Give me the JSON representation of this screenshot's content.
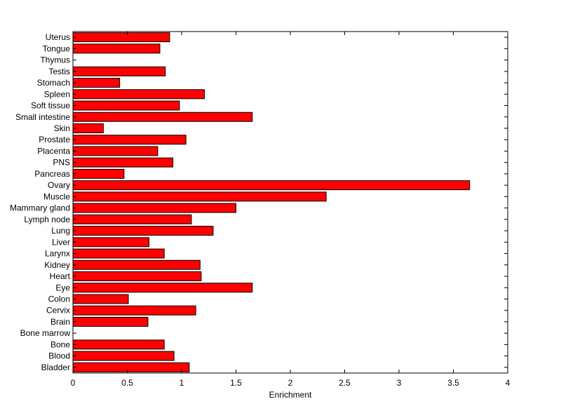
{
  "chart_data": {
    "type": "bar",
    "orientation": "horizontal",
    "categories": [
      "Bladder",
      "Blood",
      "Bone",
      "Bone marrow",
      "Brain",
      "Cervix",
      "Colon",
      "Eye",
      "Heart",
      "Kidney",
      "Larynx",
      "Liver",
      "Lung",
      "Lymph node",
      "Mammary gland",
      "Muscle",
      "Ovary",
      "Pancreas",
      "PNS",
      "Placenta",
      "Prostate",
      "Skin",
      "Small intestine",
      "Soft tissue",
      "Spleen",
      "Stomach",
      "Testis",
      "Thymus",
      "Tongue",
      "Uterus"
    ],
    "values": [
      1.07,
      0.93,
      0.84,
      0,
      0.69,
      1.13,
      0.51,
      1.65,
      1.18,
      1.17,
      0.84,
      0.7,
      1.29,
      1.09,
      1.5,
      2.33,
      3.65,
      0.47,
      0.92,
      0.78,
      1.04,
      0.28,
      1.65,
      0.98,
      1.21,
      0.43,
      0.85,
      0,
      0.8,
      0.89
    ],
    "xlabel": "Enrichment",
    "ylabel": "",
    "title": "",
    "xlim": [
      0,
      4
    ],
    "xticks": [
      0,
      0.5,
      1,
      1.5,
      2,
      2.5,
      3,
      3.5,
      4
    ],
    "xtick_labels": [
      "0",
      "0.5",
      "1",
      "1.5",
      "2",
      "2.5",
      "3",
      "3.5",
      "4"
    ],
    "grid": false,
    "bar_color": "#ff0000",
    "edge_color": "#000000"
  }
}
